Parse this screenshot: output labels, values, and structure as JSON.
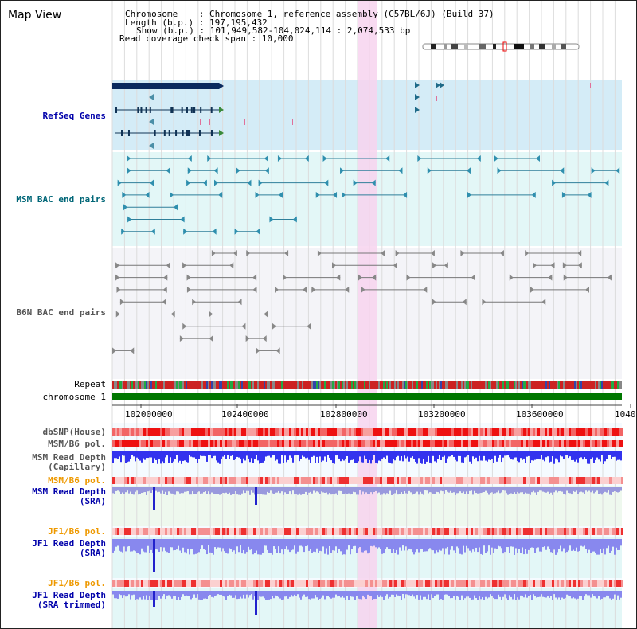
{
  "window": {
    "title": "Map View"
  },
  "info": {
    "chromosome_line": "Chromosome    : Chromosome 1, reference assembly (C57BL/6J) (Build 37)",
    "length_line": "Length (b.p.) : 197,195,432",
    "show_line": "Show (b.p.) : 101,949,582-104,024,114 : 2,074,533 bp",
    "coverage_line": "Read coverage check span : 10,000"
  },
  "tracks": {
    "refseq": "RefSeq Genes",
    "msm_bac": "MSM BAC end pairs",
    "b6n_bac": "B6N BAC end pairs",
    "repeat": "Repeat",
    "chromosome": "chromosome 1",
    "dbsnp": "dbSNP(House)",
    "msm_b6_pol_1": "MSM/B6 pol.",
    "msm_read_depth_cap_1": "MSM Read Depth",
    "msm_read_depth_cap_2": "(Capillary)",
    "msm_b6_pol_2": "MSM/B6 pol.",
    "msm_read_depth_sra_1": "MSM Read Depth",
    "msm_read_depth_sra_2": "(SRA)",
    "jf1_b6_pol_1": "JF1/B6 pol.",
    "jf1_read_depth_1": "JF1 Read Depth",
    "jf1_read_depth_2": "(SRA)",
    "jf1_b6_pol_2": "JF1/B6 pol.",
    "jf1_read_depth_trim_1": "JF1 Read Depth",
    "jf1_read_depth_trim_2": "(SRA trimmed)"
  },
  "axis": {
    "ticks": [
      "102000000",
      "102400000",
      "102800000",
      "103200000",
      "103600000",
      "1040"
    ]
  },
  "colors": {
    "refseq_bg": "#d4ecf7",
    "msm_bg": "#e3f7f7",
    "b6n_bg": "#f4f4f8",
    "highlight": "#f7d3ee",
    "chromosome_bar": "#007700",
    "depth_blue": "#3333ee",
    "depth_light": "#8888ee",
    "snp_red": "#ee2222"
  }
}
